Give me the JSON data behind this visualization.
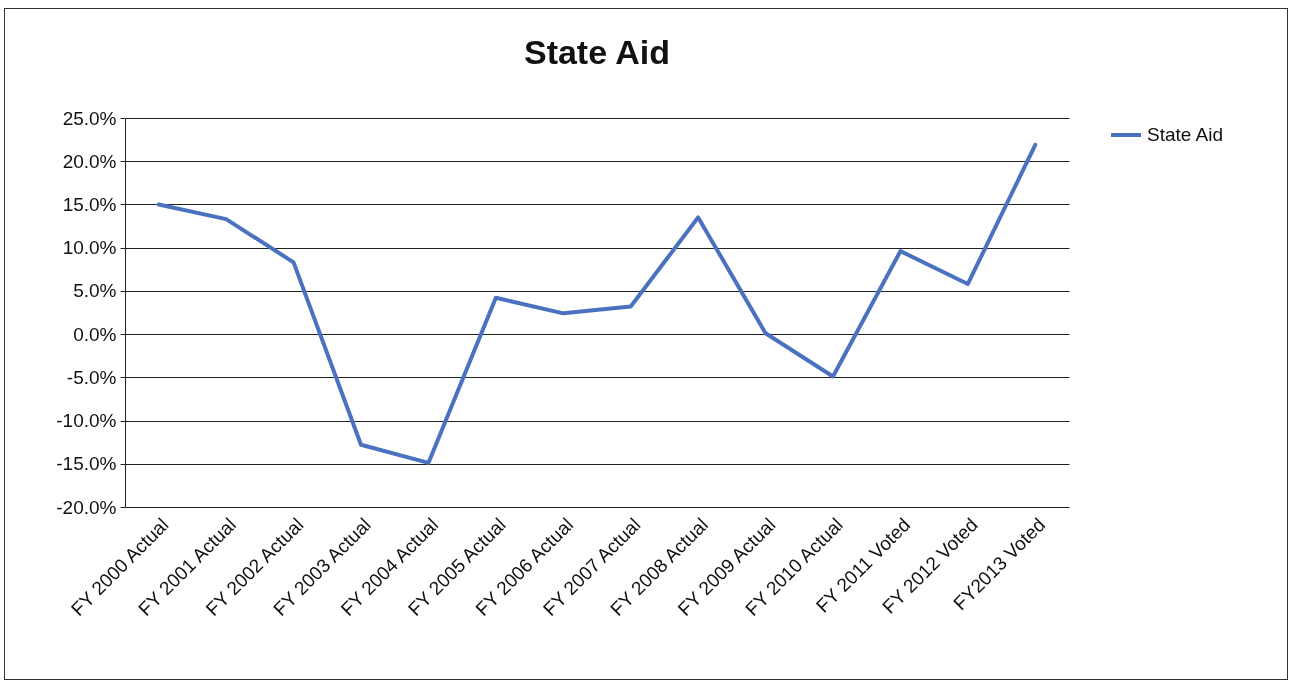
{
  "chart_data": {
    "type": "line",
    "title": "State Aid",
    "categories": [
      "FY 2000 Actual",
      "FY 2001 Actual",
      "FY 2002 Actual",
      "FY 2003 Actual",
      "FY 2004 Actual",
      "FY 2005 Actual",
      "FY 2006 Actual",
      "FY 2007 Actual",
      "FY 2008 Actual",
      "FY 2009 Actual",
      "FY 2010 Actual",
      "FY 2011 Voted",
      "FY 2012 Voted",
      "FY2013 Voted"
    ],
    "series": [
      {
        "name": "State Aid",
        "color": "#4a72c0",
        "values": [
          15.0,
          13.3,
          8.3,
          -12.8,
          -14.9,
          4.2,
          2.4,
          3.2,
          13.5,
          0.1,
          -4.9,
          9.6,
          5.8,
          21.9
        ]
      }
    ],
    "ylim": [
      -20,
      25
    ],
    "yticks": [
      {
        "value": -20,
        "label": "-20.0%"
      },
      {
        "value": -15,
        "label": "-15.0%"
      },
      {
        "value": -10,
        "label": "-10.0%"
      },
      {
        "value": -5,
        "label": "-5.0%"
      },
      {
        "value": 0,
        "label": "0.0%"
      },
      {
        "value": 5,
        "label": "5.0%"
      },
      {
        "value": 10,
        "label": "10.0%"
      },
      {
        "value": 15,
        "label": "15.0%"
      },
      {
        "value": 20,
        "label": "20.0%"
      },
      {
        "value": 25,
        "label": "25.0%"
      }
    ],
    "grid": "y",
    "legend": "right",
    "marker": "none",
    "line_style": "solid"
  }
}
